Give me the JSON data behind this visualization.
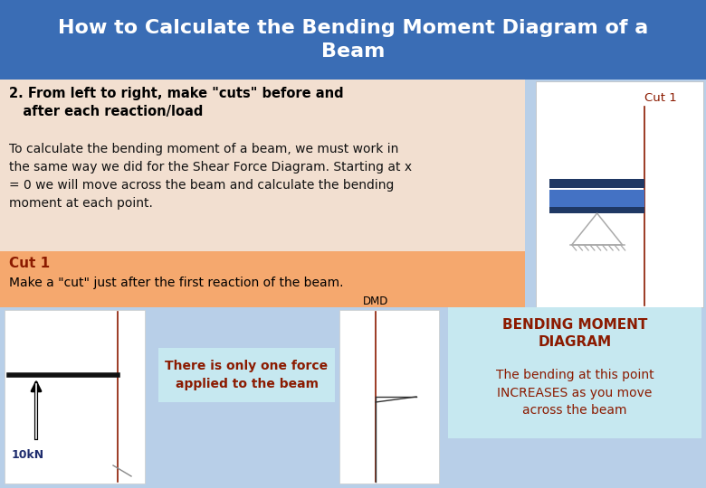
{
  "title": "How to Calculate the Bending Moment Diagram of a\nBeam",
  "title_bg_color": "#3a6db5",
  "title_text_color": "#ffffff",
  "main_bg_color": "#b8cfe8",
  "section1_bg": "#f2dfd0",
  "section2_bg": "#f5a86e",
  "section3_bg": "#c6e8f0",
  "white_box_bg": "#ffffff",
  "text1_bold": "2. From left to right, make \"cuts\" before and\n   after each reaction/load",
  "text2_body": "To calculate the bending moment of a beam, we must work in\nthe same way we did for the Shear Force Diagram. Starting at x\n= 0 we will move across the beam and calculate the bending\nmoment at each point.",
  "cut1_label": "Cut 1",
  "cut1_color": "#8b1a00",
  "cut1_text1": "Cut 1",
  "cut1_text2": "Make a \"cut\" just after the first reaction of the beam.",
  "force_label": "10kN",
  "force_note": "There is only one force\napplied to the beam",
  "bmd_label": "DMD",
  "bmd_note_title": "BENDING MOMENT\nDIAGRAM",
  "bmd_note_body": "The bending at this point\nINCREASES as you move\nacross the beam",
  "beam_color": "#4472c4",
  "beam_dark": "#1f3864",
  "tri_color": "#aaaaaa",
  "text_dark": "#1f2d6e"
}
